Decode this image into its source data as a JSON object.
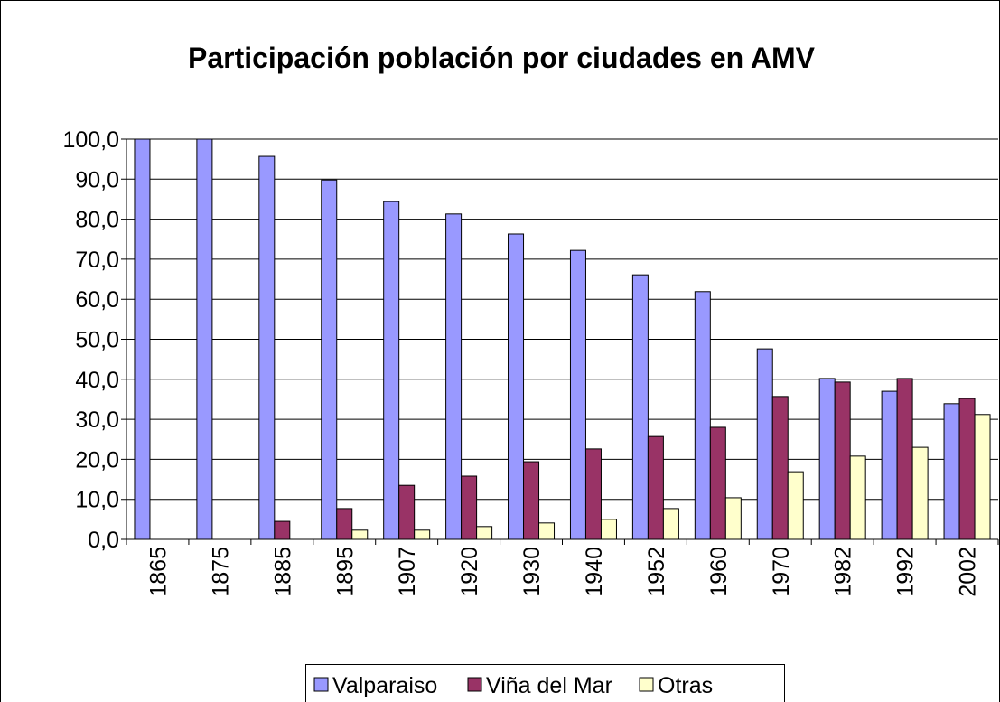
{
  "chart_data": {
    "type": "bar",
    "title": "Participación población por ciudades en AMV",
    "categories": [
      "1865",
      "1875",
      "1885",
      "1895",
      "1907",
      "1920",
      "1930",
      "1940",
      "1952",
      "1960",
      "1970",
      "1982",
      "1992",
      "2002"
    ],
    "series": [
      {
        "name": "Valparaiso",
        "color": "#9999ff",
        "values": [
          100,
          100,
          95.7,
          89.8,
          84.4,
          81.3,
          76.3,
          72.2,
          66.1,
          61.9,
          47.6,
          40.2,
          37.0,
          33.9
        ]
      },
      {
        "name": "Viña del Mar",
        "color": "#993366",
        "values": [
          0,
          0,
          4.5,
          7.7,
          13.5,
          15.8,
          19.4,
          22.6,
          25.7,
          28.0,
          35.7,
          39.3,
          40.2,
          35.2
        ]
      },
      {
        "name": "Otras",
        "color": "#ffffcc",
        "values": [
          0,
          0,
          0,
          2.3,
          2.3,
          3.2,
          4.1,
          5.0,
          7.7,
          10.4,
          16.9,
          20.8,
          23.0,
          31.2
        ]
      }
    ],
    "ylim": [
      0,
      100
    ],
    "yticks": [
      {
        "value": 0,
        "label": "0,0"
      },
      {
        "value": 10,
        "label": "10,0"
      },
      {
        "value": 20,
        "label": "20,0"
      },
      {
        "value": 30,
        "label": "30,0"
      },
      {
        "value": 40,
        "label": "40,0"
      },
      {
        "value": 50,
        "label": "50,0"
      },
      {
        "value": 60,
        "label": "60,0"
      },
      {
        "value": 70,
        "label": "70,0"
      },
      {
        "value": 80,
        "label": "80,0"
      },
      {
        "value": 90,
        "label": "90,0"
      },
      {
        "value": 100,
        "label": "100,0"
      }
    ],
    "grid": true,
    "legend": "bottom"
  }
}
